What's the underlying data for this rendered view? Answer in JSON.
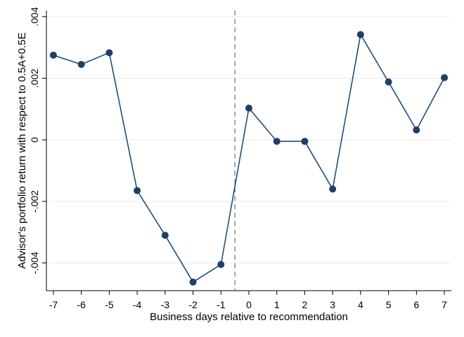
{
  "chart_data": {
    "type": "line",
    "title": "",
    "xlabel": "Business days relative to recommendation",
    "ylabel": "Advisor's portfolio return with respect to 0.5A+0.5E",
    "x": [
      -7,
      -6,
      -5,
      -4,
      -3,
      -2,
      -1,
      0,
      1,
      2,
      3,
      4,
      5,
      6,
      7
    ],
    "y": [
      0.00275,
      0.00245,
      0.00283,
      -0.00165,
      -0.0031,
      -0.00462,
      -0.00405,
      0.00103,
      -5e-05,
      -5e-05,
      -0.0016,
      0.00342,
      0.00188,
      0.00032,
      0.00202
    ],
    "xlim": [
      -7.25,
      7.25
    ],
    "ylim": [
      -0.0049,
      0.0042
    ],
    "xticks": [
      -7,
      -6,
      -5,
      -4,
      -3,
      -2,
      -1,
      0,
      1,
      2,
      3,
      4,
      5,
      6,
      7
    ],
    "xtick_labels": [
      "-7",
      "-6",
      "-5",
      "-4",
      "-3",
      "-2",
      "-1",
      "0",
      "1",
      "2",
      "3",
      "4",
      "5",
      "6",
      "7"
    ],
    "yticks": [
      -0.004,
      -0.002,
      0,
      0.002,
      0.004
    ],
    "ytick_labels": [
      "-.004",
      "-.002",
      "0",
      ".002",
      ".004"
    ],
    "reference_line_x": -0.5,
    "grid": true,
    "legend": "none",
    "colors": {
      "series": "#1f4e79",
      "marker": "#1f3f66",
      "reference": "#8c8c8c",
      "grid": "#eaeaea"
    }
  }
}
